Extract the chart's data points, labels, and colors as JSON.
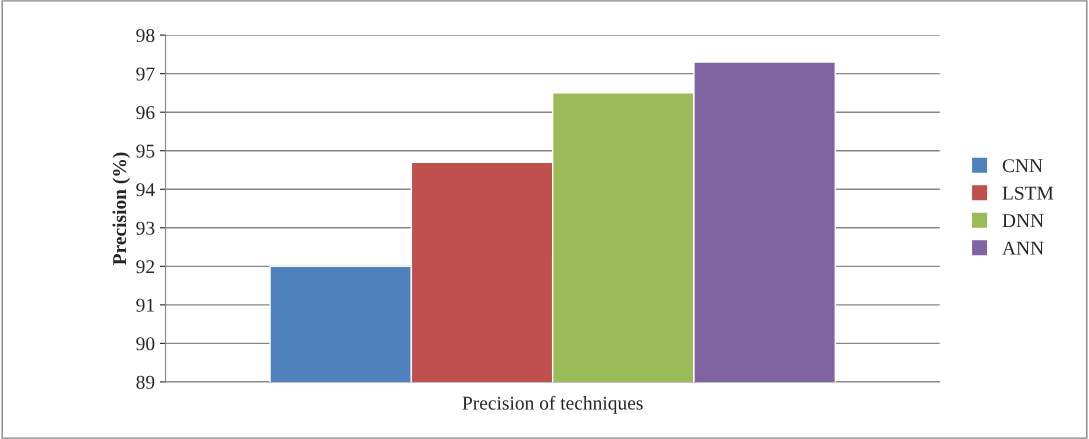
{
  "chart_data": {
    "type": "bar",
    "ylabel": "Precision (%)",
    "categories": [
      "Precision of techniques"
    ],
    "series": [
      {
        "name": "CNN",
        "color": "#4f81bd",
        "values": [
          92.0
        ]
      },
      {
        "name": "LSTM",
        "color": "#c0504d",
        "values": [
          94.7
        ]
      },
      {
        "name": "DNN",
        "color": "#9bbb59",
        "values": [
          96.5
        ]
      },
      {
        "name": "ANN",
        "color": "#8064a2",
        "values": [
          97.3
        ]
      }
    ],
    "ylim": [
      89,
      98
    ],
    "yticks": [
      89,
      90,
      91,
      92,
      93,
      94,
      95,
      96,
      97,
      98
    ],
    "grid": "y",
    "legend": "right"
  }
}
